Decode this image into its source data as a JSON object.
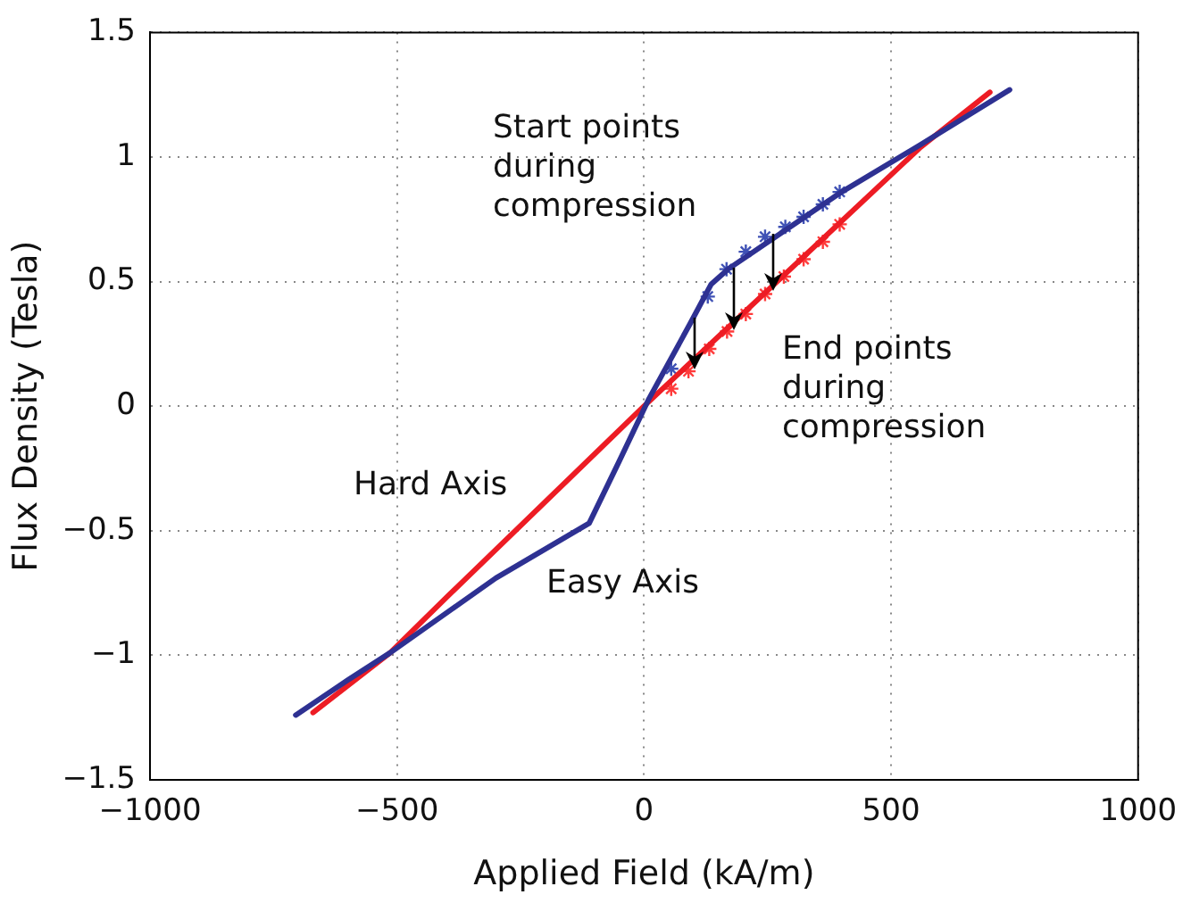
{
  "chart_data": {
    "type": "line",
    "xlabel": "Applied Field (kA/m)",
    "ylabel": "Flux Density (Tesla)",
    "xlim": [
      -1000,
      1000
    ],
    "xticks": [
      {
        "value": -1000,
        "label": "−1000"
      },
      {
        "value": -500,
        "label": "−500"
      },
      0,
      500,
      1000
    ],
    "ylim": [
      -1.5,
      1.5
    ],
    "yticks": [
      {
        "value": -1.5,
        "label": "−1.5"
      },
      {
        "value": -1,
        "label": "−1"
      },
      {
        "value": -0.5,
        "label": "−0.5"
      },
      0,
      0.5,
      1,
      1.5
    ],
    "grid": true,
    "legend": false,
    "series": [
      {
        "name": "Easy Axis",
        "type": "line",
        "marker": "none",
        "color": "#2e3192",
        "x": [
          -705,
          -600,
          -514,
          -300,
          -111,
          -50,
          10,
          93,
          136,
          170,
          400,
          560,
          740
        ],
        "values": [
          -1.24,
          -1.1,
          -0.99,
          -0.69,
          -0.47,
          -0.22,
          0.03,
          0.33,
          0.49,
          0.55,
          0.86,
          1.05,
          1.27
        ]
      },
      {
        "name": "Hard Axis",
        "type": "line",
        "marker": "none",
        "color": "#ed1c24",
        "x": [
          -670,
          -514,
          -396,
          0,
          560,
          700
        ],
        "values": [
          -1.23,
          -0.99,
          -0.76,
          0,
          1.04,
          1.26
        ]
      },
      {
        "name": "Start points during compression",
        "type": "scatter",
        "marker": "cross",
        "color": "#3f51b5",
        "x": [
          55,
          129,
          167,
          206,
          245,
          286,
          323,
          362,
          396
        ],
        "values": [
          0.15,
          0.44,
          0.55,
          0.62,
          0.68,
          0.72,
          0.76,
          0.81,
          0.86
        ]
      },
      {
        "name": "End points during compression",
        "type": "scatter",
        "marker": "cross",
        "color": "#ff3b3b",
        "x": [
          55,
          90,
          132,
          168,
          206,
          245,
          283,
          323,
          362,
          396
        ],
        "values": [
          0.07,
          0.14,
          0.23,
          0.3,
          0.37,
          0.45,
          0.52,
          0.59,
          0.66,
          0.73
        ]
      }
    ]
  }
}
